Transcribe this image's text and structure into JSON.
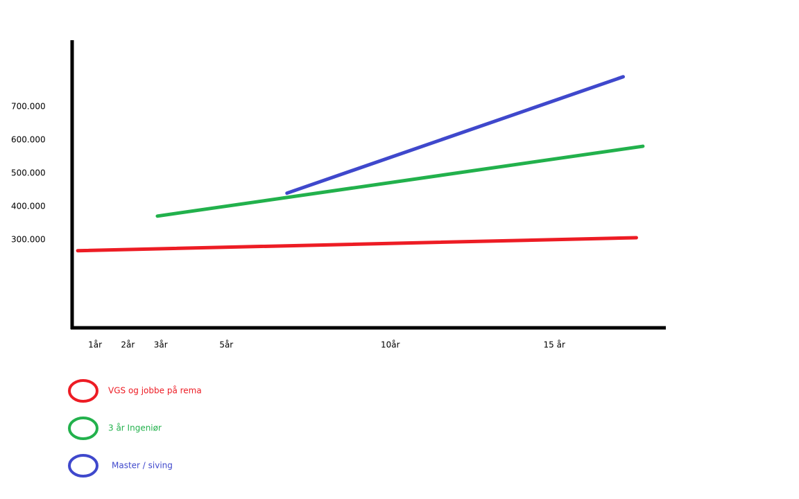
{
  "chart_data": {
    "type": "line",
    "series": [
      {
        "name": "VGS og jobbe på rema",
        "color": "#ed1c24",
        "x": [
          0.47,
          17.5
        ],
        "values": [
          267000,
          306000
        ]
      },
      {
        "name": "3 år Ingeniør",
        "color": "#22b14c",
        "x": [
          2.9,
          17.7
        ],
        "values": [
          371000,
          581000
        ]
      },
      {
        "name": "Master / siving",
        "color": "#3f48cc",
        "x": [
          6.85,
          17.1
        ],
        "values": [
          440000,
          790000
        ]
      }
    ],
    "xlim": [
      0.3,
      18.4
    ],
    "xticks": [
      {
        "value": 1,
        "label": "1år"
      },
      {
        "value": 2,
        "label": "2år"
      },
      {
        "value": 3,
        "label": "3år"
      },
      {
        "value": 5,
        "label": "5år"
      },
      {
        "value": 10,
        "label": "10år"
      },
      {
        "value": 15,
        "label": "15 år"
      }
    ],
    "ylim": [
      35000,
      900000
    ],
    "yticks": [
      {
        "value": 300000,
        "label": "300.000"
      },
      {
        "value": 400000,
        "label": "400.000"
      },
      {
        "value": 500000,
        "label": "500.000"
      },
      {
        "value": 600000,
        "label": "600.000"
      },
      {
        "value": 700000,
        "label": "700.000"
      }
    ]
  }
}
